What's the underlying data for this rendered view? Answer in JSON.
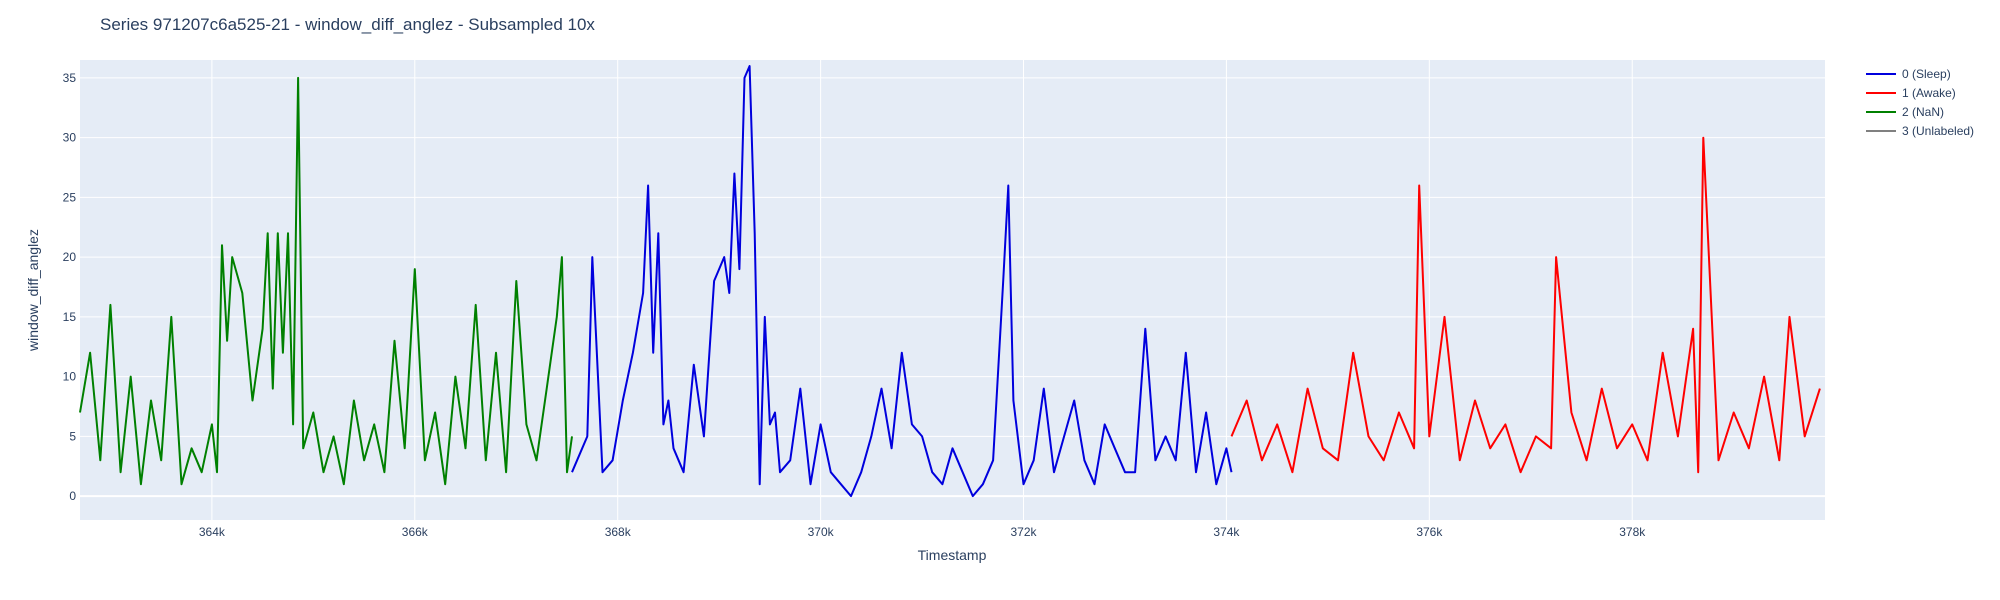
{
  "chart_data": {
    "type": "line",
    "title": "Series 971207c6a525-21 - window_diff_anglez - Subsampled 10x",
    "xlabel": "Timestamp",
    "ylabel": "window_diff_anglez",
    "xlim": [
      362700,
      379900
    ],
    "ylim": [
      -2,
      36.5
    ],
    "x_ticks": [
      364000,
      366000,
      368000,
      370000,
      372000,
      374000,
      376000,
      378000
    ],
    "x_tick_labels": [
      "364k",
      "366k",
      "368k",
      "370k",
      "372k",
      "374k",
      "376k",
      "378k"
    ],
    "y_ticks": [
      0,
      5,
      10,
      15,
      20,
      25,
      30,
      35
    ],
    "y_tick_labels": [
      "0",
      "5",
      "10",
      "15",
      "20",
      "25",
      "30",
      "35"
    ],
    "grid": true,
    "legend_position": "right",
    "series": [
      {
        "name": "0 (Sleep)",
        "color": "#0000dd",
        "x": [
          367550,
          367700,
          367750,
          367850,
          367950,
          368050,
          368150,
          368250,
          368300,
          368350,
          368400,
          368450,
          368500,
          368550,
          368650,
          368750,
          368850,
          368950,
          369050,
          369100,
          369150,
          369200,
          369250,
          369300,
          369350,
          369400,
          369450,
          369500,
          369550,
          369600,
          369700,
          369800,
          369900,
          370000,
          370100,
          370200,
          370300,
          370400,
          370500,
          370600,
          370700,
          370800,
          370900,
          371000,
          371100,
          371200,
          371300,
          371400,
          371500,
          371600,
          371700,
          371800,
          371850,
          371900,
          372000,
          372100,
          372200,
          372300,
          372400,
          372500,
          372600,
          372700,
          372800,
          372900,
          373000,
          373100,
          373200,
          373300,
          373400,
          373500,
          373600,
          373700,
          373800,
          373900,
          374000,
          374050
        ],
        "y": [
          2,
          5,
          20,
          2,
          3,
          8,
          12,
          17,
          26,
          12,
          22,
          6,
          8,
          4,
          2,
          11,
          5,
          18,
          20,
          17,
          27,
          19,
          35,
          36,
          22,
          1,
          15,
          6,
          7,
          2,
          3,
          9,
          1,
          6,
          2,
          1,
          0,
          2,
          5,
          9,
          4,
          12,
          6,
          5,
          2,
          1,
          4,
          2,
          0,
          1,
          3,
          18,
          26,
          8,
          1,
          3,
          9,
          2,
          5,
          8,
          3,
          1,
          6,
          4,
          2,
          2,
          14,
          3,
          5,
          3,
          12,
          2,
          7,
          1,
          4,
          2
        ]
      },
      {
        "name": "1 (Awake)",
        "color": "#ff0000",
        "x": [
          374050,
          374200,
          374350,
          374500,
          374650,
          374800,
          374950,
          375100,
          375250,
          375400,
          375550,
          375700,
          375850,
          375900,
          376000,
          376150,
          376300,
          376450,
          376600,
          376750,
          376900,
          377050,
          377200,
          377250,
          377400,
          377550,
          377700,
          377850,
          378000,
          378150,
          378300,
          378450,
          378600,
          378650,
          378700,
          378850,
          379000,
          379150,
          379300,
          379450,
          379550,
          379700,
          379850
        ],
        "y": [
          5,
          8,
          3,
          6,
          2,
          9,
          4,
          3,
          12,
          5,
          3,
          7,
          4,
          26,
          5,
          15,
          3,
          8,
          4,
          6,
          2,
          5,
          4,
          20,
          7,
          3,
          9,
          4,
          6,
          3,
          12,
          5,
          14,
          2,
          30,
          3,
          7,
          4,
          10,
          3,
          15,
          5,
          9
        ]
      },
      {
        "name": "2 (NaN)",
        "color": "#008000",
        "x": [
          362700,
          362800,
          362900,
          363000,
          363100,
          363200,
          363300,
          363400,
          363500,
          363600,
          363700,
          363800,
          363900,
          364000,
          364050,
          364100,
          364150,
          364200,
          364300,
          364400,
          364500,
          364550,
          364600,
          364650,
          364700,
          364750,
          364800,
          364850,
          364900,
          365000,
          365100,
          365200,
          365300,
          365400,
          365500,
          365600,
          365700,
          365800,
          365900,
          366000,
          366100,
          366200,
          366300,
          366400,
          366500,
          366600,
          366700,
          366800,
          366900,
          367000,
          367100,
          367200,
          367300,
          367400,
          367450,
          367500,
          367550
        ],
        "y": [
          7,
          12,
          3,
          16,
          2,
          10,
          1,
          8,
          3,
          15,
          1,
          4,
          2,
          6,
          2,
          21,
          13,
          20,
          17,
          8,
          14,
          22,
          9,
          22,
          12,
          22,
          6,
          35,
          4,
          7,
          2,
          5,
          1,
          8,
          3,
          6,
          2,
          13,
          4,
          19,
          3,
          7,
          1,
          10,
          4,
          16,
          3,
          12,
          2,
          18,
          6,
          3,
          9,
          15,
          20,
          2,
          5
        ]
      },
      {
        "name": "3 (Unlabeled)",
        "color": "#808080",
        "x": [],
        "y": []
      }
    ]
  }
}
